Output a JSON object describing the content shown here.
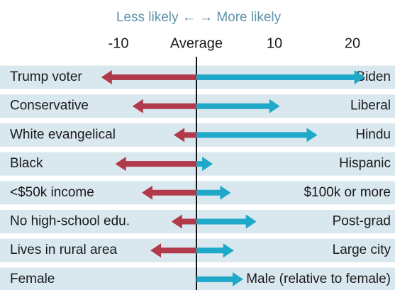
{
  "chart_data": {
    "type": "diverging-arrow",
    "header": "Less likely ← → More likely",
    "categories": [
      "Trump voter",
      "Conservative",
      "White evangelical",
      "Black",
      "<$50k income",
      "No high-school edu.",
      "Lives in rural area",
      "Female"
    ],
    "right_labels": [
      "Biden",
      "Liberal",
      "Hindu",
      "Hispanic",
      "$100k or more",
      "Post-grad",
      "Large city",
      "Male (relative to female)"
    ],
    "series": [
      {
        "color": "#b0394a",
        "values": [
          -12.2,
          -8.2,
          -2.9,
          -10.4,
          -7,
          -3.2,
          -5.9,
          null
        ]
      },
      {
        "color": "#1fa8c8",
        "values": [
          21.6,
          10.7,
          15.5,
          2.1,
          4.4,
          7.7,
          4.8,
          6
        ]
      }
    ],
    "xlim": [
      -25,
      25
    ],
    "xticks": [
      -10,
      {
        "value": 0,
        "label": "Average"
      },
      10,
      20
    ],
    "row_color": "#d9e7ef"
  }
}
